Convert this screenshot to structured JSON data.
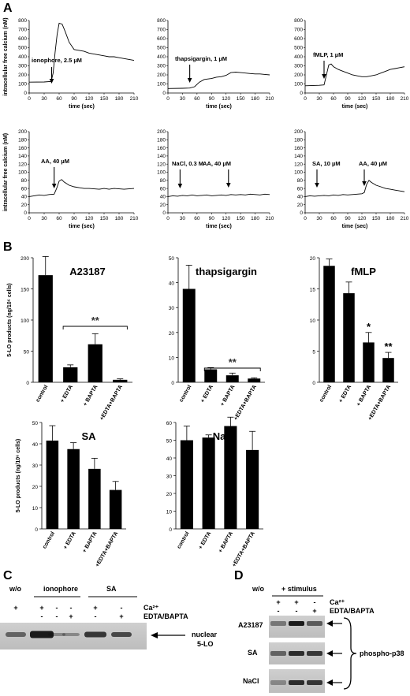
{
  "panels": {
    "A": "A",
    "B": "B",
    "C": "C",
    "D": "D"
  },
  "chart_data": [
    {
      "type": "line",
      "panel": "A",
      "ylabel": "intracellular free calcium (nM)",
      "xlabel": "time (sec)",
      "xlim": [
        0,
        210
      ],
      "ylim": [
        0,
        800
      ],
      "xticks": [
        0,
        30,
        60,
        90,
        120,
        150,
        180,
        210
      ],
      "yticks": [
        0,
        100,
        200,
        300,
        400,
        500,
        600,
        700,
        800
      ],
      "annotations": [
        {
          "text": "ionophore, 2.5 µM",
          "x": 45
        }
      ],
      "series": [
        {
          "x": [
            0,
            30,
            44,
            48,
            52,
            56,
            60,
            66,
            72,
            80,
            90,
            100,
            110,
            120,
            130,
            140,
            150,
            160,
            170,
            180,
            190,
            200,
            210
          ],
          "y": [
            120,
            122,
            128,
            220,
            450,
            650,
            770,
            760,
            680,
            560,
            480,
            470,
            460,
            440,
            430,
            420,
            410,
            400,
            400,
            390,
            380,
            370,
            360
          ]
        }
      ]
    },
    {
      "type": "line",
      "panel": "A",
      "ylabel": "",
      "xlabel": "time (sec)",
      "xlim": [
        0,
        210
      ],
      "ylim": [
        0,
        800
      ],
      "xticks": [
        0,
        30,
        60,
        90,
        120,
        150,
        180,
        210
      ],
      "yticks": [
        0,
        100,
        200,
        300,
        400,
        500,
        600,
        700,
        800
      ],
      "annotations": [
        {
          "text": "thapsigargin, 1 µM",
          "x": 45
        }
      ],
      "series": [
        {
          "x": [
            0,
            30,
            45,
            55,
            65,
            75,
            90,
            100,
            110,
            120,
            130,
            140,
            150,
            160,
            170,
            180,
            190,
            200,
            210
          ],
          "y": [
            50,
            52,
            55,
            70,
            120,
            150,
            160,
            175,
            180,
            195,
            225,
            230,
            225,
            220,
            215,
            210,
            210,
            205,
            200
          ]
        }
      ]
    },
    {
      "type": "line",
      "panel": "A",
      "ylabel": "",
      "xlabel": "time (sec)",
      "xlim": [
        0,
        210
      ],
      "ylim": [
        0,
        800
      ],
      "xticks": [
        0,
        30,
        60,
        90,
        120,
        150,
        180,
        210
      ],
      "yticks": [
        0,
        100,
        200,
        300,
        400,
        500,
        600,
        700,
        800
      ],
      "annotations": [
        {
          "text": "fMLP, 1 µM",
          "x": 40
        }
      ],
      "series": [
        {
          "x": [
            0,
            30,
            40,
            45,
            50,
            55,
            60,
            70,
            80,
            90,
            100,
            110,
            120,
            130,
            140,
            150,
            160,
            170,
            180,
            190,
            200,
            210
          ],
          "y": [
            80,
            85,
            90,
            200,
            310,
            320,
            290,
            260,
            240,
            220,
            200,
            190,
            180,
            180,
            190,
            200,
            220,
            240,
            260,
            270,
            280,
            290
          ]
        }
      ]
    },
    {
      "type": "line",
      "panel": "A",
      "ylabel": "intracellular free calcium (nM)",
      "xlabel": "time (sec)",
      "xlim": [
        0,
        210
      ],
      "ylim": [
        0,
        200
      ],
      "xticks": [
        0,
        30,
        60,
        90,
        120,
        150,
        180,
        210
      ],
      "yticks": [
        0,
        20,
        40,
        60,
        80,
        100,
        120,
        140,
        160,
        180,
        200
      ],
      "annotations": [
        {
          "text": "AA, 40 µM",
          "x": 50
        }
      ],
      "series": [
        {
          "x": [
            0,
            10,
            20,
            30,
            40,
            50,
            55,
            60,
            65,
            70,
            80,
            90,
            100,
            110,
            120,
            130,
            140,
            150,
            160,
            170,
            180,
            190,
            200,
            210
          ],
          "y": [
            40,
            42,
            44,
            43,
            45,
            46,
            60,
            78,
            82,
            76,
            68,
            64,
            62,
            60,
            60,
            59,
            58,
            60,
            58,
            60,
            59,
            58,
            59,
            60
          ]
        }
      ]
    },
    {
      "type": "line",
      "panel": "A",
      "ylabel": "",
      "xlabel": "time (sec)",
      "xlim": [
        0,
        210
      ],
      "ylim": [
        0,
        200
      ],
      "xticks": [
        0,
        30,
        60,
        90,
        120,
        150,
        180,
        210
      ],
      "yticks": [
        0,
        20,
        40,
        60,
        80,
        100,
        120,
        140,
        160,
        180,
        200
      ],
      "annotations": [
        {
          "text": "NaCl, 0.3 M",
          "x": 25
        },
        {
          "text": "AA, 40 µM",
          "x": 125
        }
      ],
      "series": [
        {
          "x": [
            0,
            10,
            20,
            30,
            40,
            50,
            60,
            70,
            80,
            90,
            100,
            110,
            120,
            130,
            140,
            150,
            160,
            170,
            180,
            190,
            200,
            210
          ],
          "y": [
            40,
            42,
            41,
            43,
            42,
            44,
            42,
            43,
            44,
            42,
            43,
            44,
            43,
            45,
            44,
            45,
            44,
            46,
            45,
            44,
            46,
            45
          ]
        }
      ]
    },
    {
      "type": "line",
      "panel": "A",
      "ylabel": "",
      "xlabel": "time (sec)",
      "xlim": [
        0,
        210
      ],
      "ylim": [
        0,
        200
      ],
      "xticks": [
        0,
        30,
        60,
        90,
        120,
        150,
        180,
        210
      ],
      "yticks": [
        0,
        20,
        40,
        60,
        80,
        100,
        120,
        140,
        160,
        180,
        200
      ],
      "annotations": [
        {
          "text": "SA, 10 µM",
          "x": 25
        },
        {
          "text": "AA, 40 µM",
          "x": 125
        }
      ],
      "series": [
        {
          "x": [
            0,
            10,
            20,
            30,
            40,
            50,
            60,
            70,
            80,
            90,
            100,
            110,
            120,
            125,
            130,
            135,
            140,
            150,
            160,
            170,
            180,
            190,
            200,
            210
          ],
          "y": [
            40,
            42,
            41,
            42,
            43,
            42,
            44,
            43,
            45,
            44,
            45,
            46,
            47,
            50,
            70,
            80,
            75,
            68,
            64,
            60,
            58,
            56,
            54,
            52
          ]
        }
      ]
    },
    {
      "type": "bar",
      "panel": "B",
      "title": "A23187",
      "ylabel": "5-LO products (ng/10⁶ cells)",
      "ylim": [
        0,
        200
      ],
      "yticks": [
        0,
        50,
        100,
        150,
        200
      ],
      "categories": [
        "control",
        "+ EDTA",
        "+ BAPTA",
        "+EDTA+BAPTA"
      ],
      "values": [
        172,
        24,
        61,
        4
      ],
      "errors": [
        30,
        4,
        17,
        1.5
      ],
      "significance": {
        "text": "**",
        "from": 1,
        "to": 3
      }
    },
    {
      "type": "bar",
      "panel": "B",
      "title": "thapsigargin",
      "ylabel": "",
      "ylim": [
        0,
        50
      ],
      "yticks": [
        0,
        10,
        20,
        30,
        40,
        50
      ],
      "categories": [
        "control",
        "+ EDTA",
        "+ BAPTA",
        "+EDTA+BAPTA"
      ],
      "values": [
        37.5,
        5.2,
        2.8,
        1.5
      ],
      "errors": [
        9.5,
        0.7,
        0.9,
        0.3
      ],
      "significance": {
        "text": "**",
        "from": 1,
        "to": 3
      }
    },
    {
      "type": "bar",
      "panel": "B",
      "title": "fMLP",
      "ylabel": "",
      "ylim": [
        0,
        20
      ],
      "yticks": [
        0,
        5,
        10,
        15,
        20
      ],
      "categories": [
        "control",
        "+ EDTA",
        "+ BAPTA",
        "+EDTA+BAPTA"
      ],
      "values": [
        18.7,
        14.3,
        6.4,
        3.9
      ],
      "errors": [
        1.1,
        1.8,
        1.6,
        0.9
      ],
      "stars": [
        "",
        "",
        "*",
        "**"
      ]
    },
    {
      "type": "bar",
      "panel": "B",
      "title": "SA",
      "ylabel": "5-LO products (ng/10⁶ cells)",
      "ylim": [
        0,
        50
      ],
      "yticks": [
        0,
        10,
        20,
        30,
        40,
        50
      ],
      "categories": [
        "control",
        "+ EDTA",
        "+ BAPTA",
        "+EDTA+BAPTA"
      ],
      "values": [
        41.5,
        37.5,
        28.2,
        18.3
      ],
      "errors": [
        7,
        3,
        5,
        4
      ]
    },
    {
      "type": "bar",
      "panel": "B",
      "title": "NaCl",
      "ylabel": "",
      "ylim": [
        0,
        60
      ],
      "yticks": [
        0,
        10,
        20,
        30,
        40,
        50,
        60
      ],
      "categories": [
        "control",
        "+ EDTA",
        "+ BAPTA",
        "+EDTA+BAPTA"
      ],
      "values": [
        50,
        51.5,
        58,
        44.5
      ],
      "errors": [
        8,
        1.5,
        5,
        10.5
      ]
    }
  ],
  "blot_c": {
    "groups": [
      "w/o",
      "ionophore",
      "SA"
    ],
    "row_labels": [
      "Ca²⁺",
      "EDTA/BAPTA"
    ],
    "ca": [
      "+",
      "+",
      "-",
      "-",
      "+",
      "-"
    ],
    "edta": [
      "",
      "-",
      "-",
      "+",
      "-",
      "+"
    ],
    "result_label": "nuclear\n5-LO"
  },
  "blot_d": {
    "groups": [
      "w/o",
      "+ stimulus"
    ],
    "row_labels": [
      "Ca²⁺",
      "EDTA/BAPTA"
    ],
    "ca": [
      "+",
      "+",
      "-"
    ],
    "edta": [
      "-",
      "-",
      "+"
    ],
    "rows": [
      "A23187",
      "SA",
      "NaCl"
    ],
    "result_label": "phospho-p38"
  }
}
